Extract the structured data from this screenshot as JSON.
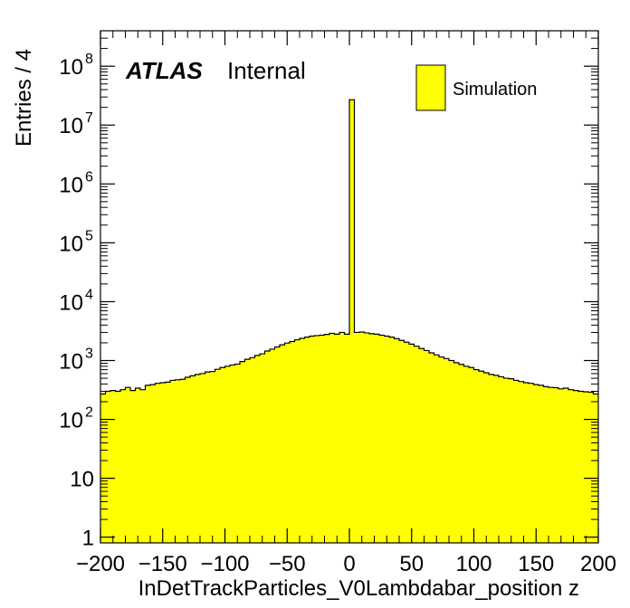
{
  "chart_data": {
    "type": "histogram",
    "xlabel": "InDetTrackParticles_V0Lambdabar_position z",
    "ylabel": "Entries / 4",
    "xlim": [
      -200,
      200
    ],
    "ylim": [
      0.8,
      400000000
    ],
    "yscale": "log",
    "bin_width": 4,
    "bar_color": "#ffff00",
    "x_ticks": [
      {
        "value": -200,
        "label": "−200"
      },
      {
        "value": -150,
        "label": "−150"
      },
      {
        "value": -100,
        "label": "−100"
      },
      {
        "value": -50,
        "label": "−50"
      },
      {
        "value": 0,
        "label": "0"
      },
      {
        "value": 50,
        "label": "50"
      },
      {
        "value": 100,
        "label": "100"
      },
      {
        "value": 150,
        "label": "150"
      },
      {
        "value": 200,
        "label": "200"
      }
    ],
    "y_ticks": [
      {
        "value": 1,
        "base": "1",
        "exp": ""
      },
      {
        "value": 10,
        "base": "10",
        "exp": ""
      },
      {
        "value": 100,
        "base": "10",
        "exp": "2"
      },
      {
        "value": 1000,
        "base": "10",
        "exp": "3"
      },
      {
        "value": 10000,
        "base": "10",
        "exp": "4"
      },
      {
        "value": 100000,
        "base": "10",
        "exp": "5"
      },
      {
        "value": 1000000,
        "base": "10",
        "exp": "6"
      },
      {
        "value": 10000000,
        "base": "10",
        "exp": "7"
      },
      {
        "value": 100000000,
        "base": "10",
        "exp": "8"
      }
    ],
    "bins": [
      {
        "x0": -200,
        "x1": -196,
        "y": 270
      },
      {
        "x0": -196,
        "x1": -192,
        "y": 300
      },
      {
        "x0": -192,
        "x1": -188,
        "y": 310
      },
      {
        "x0": -188,
        "x1": -184,
        "y": 300
      },
      {
        "x0": -184,
        "x1": -180,
        "y": 320
      },
      {
        "x0": -180,
        "x1": -176,
        "y": 350
      },
      {
        "x0": -176,
        "x1": -172,
        "y": 310
      },
      {
        "x0": -172,
        "x1": -168,
        "y": 340
      },
      {
        "x0": -168,
        "x1": -164,
        "y": 320
      },
      {
        "x0": -164,
        "x1": -160,
        "y": 380
      },
      {
        "x0": -160,
        "x1": -156,
        "y": 390
      },
      {
        "x0": -156,
        "x1": -152,
        "y": 410
      },
      {
        "x0": -152,
        "x1": -148,
        "y": 420
      },
      {
        "x0": -148,
        "x1": -144,
        "y": 430
      },
      {
        "x0": -144,
        "x1": -140,
        "y": 460
      },
      {
        "x0": -140,
        "x1": -136,
        "y": 470
      },
      {
        "x0": -136,
        "x1": -132,
        "y": 480
      },
      {
        "x0": -132,
        "x1": -128,
        "y": 520
      },
      {
        "x0": -128,
        "x1": -124,
        "y": 550
      },
      {
        "x0": -124,
        "x1": -120,
        "y": 580
      },
      {
        "x0": -120,
        "x1": -116,
        "y": 600
      },
      {
        "x0": -116,
        "x1": -112,
        "y": 640
      },
      {
        "x0": -112,
        "x1": -108,
        "y": 650
      },
      {
        "x0": -108,
        "x1": -104,
        "y": 710
      },
      {
        "x0": -104,
        "x1": -100,
        "y": 760
      },
      {
        "x0": -100,
        "x1": -96,
        "y": 800
      },
      {
        "x0": -96,
        "x1": -92,
        "y": 840
      },
      {
        "x0": -92,
        "x1": -88,
        "y": 870
      },
      {
        "x0": -88,
        "x1": -84,
        "y": 960
      },
      {
        "x0": -84,
        "x1": -80,
        "y": 1050
      },
      {
        "x0": -80,
        "x1": -76,
        "y": 1120
      },
      {
        "x0": -76,
        "x1": -72,
        "y": 1220
      },
      {
        "x0": -72,
        "x1": -68,
        "y": 1300
      },
      {
        "x0": -68,
        "x1": -64,
        "y": 1450
      },
      {
        "x0": -64,
        "x1": -60,
        "y": 1560
      },
      {
        "x0": -60,
        "x1": -56,
        "y": 1700
      },
      {
        "x0": -56,
        "x1": -52,
        "y": 1850
      },
      {
        "x0": -52,
        "x1": -48,
        "y": 1980
      },
      {
        "x0": -48,
        "x1": -44,
        "y": 2100
      },
      {
        "x0": -44,
        "x1": -40,
        "y": 2250
      },
      {
        "x0": -40,
        "x1": -36,
        "y": 2380
      },
      {
        "x0": -36,
        "x1": -32,
        "y": 2500
      },
      {
        "x0": -32,
        "x1": -28,
        "y": 2600
      },
      {
        "x0": -28,
        "x1": -24,
        "y": 2650
      },
      {
        "x0": -24,
        "x1": -20,
        "y": 2700
      },
      {
        "x0": -20,
        "x1": -16,
        "y": 2780
      },
      {
        "x0": -16,
        "x1": -12,
        "y": 2900
      },
      {
        "x0": -12,
        "x1": -8,
        "y": 2800
      },
      {
        "x0": -8,
        "x1": -4,
        "y": 3000
      },
      {
        "x0": -4,
        "x1": 0,
        "y": 2800
      },
      {
        "x0": 0,
        "x1": 4,
        "y": 27000000
      },
      {
        "x0": 4,
        "x1": 8,
        "y": 3000
      },
      {
        "x0": 8,
        "x1": 12,
        "y": 3050
      },
      {
        "x0": 12,
        "x1": 16,
        "y": 2950
      },
      {
        "x0": 16,
        "x1": 20,
        "y": 2850
      },
      {
        "x0": 20,
        "x1": 24,
        "y": 2800
      },
      {
        "x0": 24,
        "x1": 28,
        "y": 2700
      },
      {
        "x0": 28,
        "x1": 32,
        "y": 2600
      },
      {
        "x0": 32,
        "x1": 36,
        "y": 2500
      },
      {
        "x0": 36,
        "x1": 40,
        "y": 2350
      },
      {
        "x0": 40,
        "x1": 44,
        "y": 2200
      },
      {
        "x0": 44,
        "x1": 48,
        "y": 2050
      },
      {
        "x0": 48,
        "x1": 52,
        "y": 1900
      },
      {
        "x0": 52,
        "x1": 56,
        "y": 1750
      },
      {
        "x0": 56,
        "x1": 60,
        "y": 1600
      },
      {
        "x0": 60,
        "x1": 64,
        "y": 1480
      },
      {
        "x0": 64,
        "x1": 68,
        "y": 1350
      },
      {
        "x0": 68,
        "x1": 72,
        "y": 1250
      },
      {
        "x0": 72,
        "x1": 76,
        "y": 1150
      },
      {
        "x0": 76,
        "x1": 80,
        "y": 1080
      },
      {
        "x0": 80,
        "x1": 84,
        "y": 1000
      },
      {
        "x0": 84,
        "x1": 88,
        "y": 920
      },
      {
        "x0": 88,
        "x1": 92,
        "y": 860
      },
      {
        "x0": 92,
        "x1": 96,
        "y": 800
      },
      {
        "x0": 96,
        "x1": 100,
        "y": 760
      },
      {
        "x0": 100,
        "x1": 104,
        "y": 700
      },
      {
        "x0": 104,
        "x1": 108,
        "y": 660
      },
      {
        "x0": 108,
        "x1": 112,
        "y": 620
      },
      {
        "x0": 112,
        "x1": 116,
        "y": 580
      },
      {
        "x0": 116,
        "x1": 120,
        "y": 560
      },
      {
        "x0": 120,
        "x1": 124,
        "y": 530
      },
      {
        "x0": 124,
        "x1": 128,
        "y": 500
      },
      {
        "x0": 128,
        "x1": 132,
        "y": 490
      },
      {
        "x0": 132,
        "x1": 136,
        "y": 460
      },
      {
        "x0": 136,
        "x1": 140,
        "y": 440
      },
      {
        "x0": 140,
        "x1": 144,
        "y": 420
      },
      {
        "x0": 144,
        "x1": 148,
        "y": 410
      },
      {
        "x0": 148,
        "x1": 152,
        "y": 390
      },
      {
        "x0": 152,
        "x1": 156,
        "y": 380
      },
      {
        "x0": 156,
        "x1": 160,
        "y": 360
      },
      {
        "x0": 160,
        "x1": 164,
        "y": 350
      },
      {
        "x0": 164,
        "x1": 168,
        "y": 345
      },
      {
        "x0": 168,
        "x1": 172,
        "y": 330
      },
      {
        "x0": 172,
        "x1": 176,
        "y": 340
      },
      {
        "x0": 176,
        "x1": 180,
        "y": 320
      },
      {
        "x0": 180,
        "x1": 184,
        "y": 310
      },
      {
        "x0": 184,
        "x1": 188,
        "y": 300
      },
      {
        "x0": 188,
        "x1": 192,
        "y": 295
      },
      {
        "x0": 192,
        "x1": 196,
        "y": 290
      },
      {
        "x0": 196,
        "x1": 200,
        "y": 270
      }
    ],
    "annotations": {
      "atlas": "ATLAS",
      "internal": "Internal"
    },
    "legend": {
      "position": "top-right",
      "entries": [
        {
          "label": "Simulation",
          "color": "#ffff00"
        }
      ]
    }
  }
}
